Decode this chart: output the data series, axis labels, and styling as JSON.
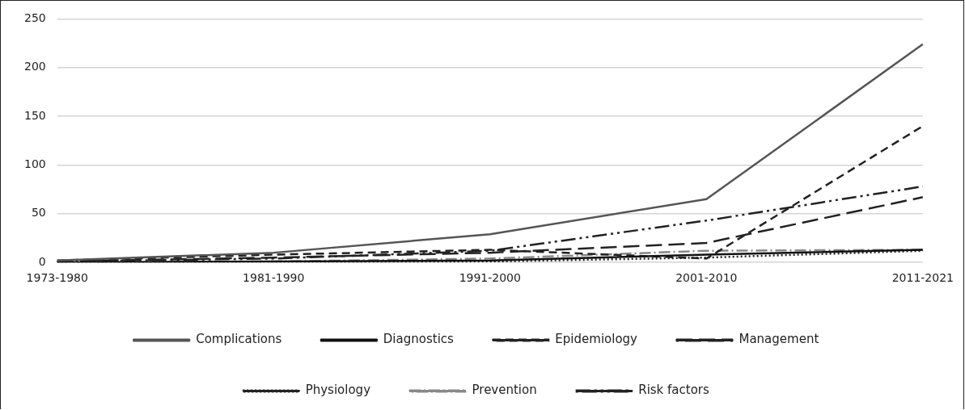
{
  "chart_data": {
    "type": "line",
    "categories": [
      "1973-1980",
      "1981-1990",
      "1991-2000",
      "2001-2010",
      "2011-2021"
    ],
    "series": [
      {
        "name": "Complications",
        "color": "#555555",
        "line_style": "solid",
        "values": [
          2,
          10,
          29,
          65,
          224
        ]
      },
      {
        "name": "Diagnostics",
        "color": "#111111",
        "line_style": "solid",
        "values": [
          0,
          1,
          2,
          8,
          13
        ]
      },
      {
        "name": "Epidemiology",
        "color": "#222222",
        "line_style": "dashed",
        "values": [
          2,
          8,
          13,
          4,
          140
        ]
      },
      {
        "name": "Management",
        "color": "#222222",
        "line_style": "dashed",
        "values": [
          1,
          5,
          10,
          20,
          67
        ]
      },
      {
        "name": "Physiology",
        "color": "#222222",
        "line_style": "dotted",
        "values": [
          0,
          0,
          1,
          5,
          12
        ]
      },
      {
        "name": "Prevention",
        "color": "#888888",
        "line_style": "dashed",
        "values": [
          0,
          1,
          4,
          12,
          13
        ]
      },
      {
        "name": "Risk factors",
        "color": "#222222",
        "line_style": "dashed",
        "values": [
          1,
          4,
          12,
          43,
          78
        ]
      }
    ],
    "ylim": [
      0,
      250
    ],
    "yticks": [
      0,
      50,
      100,
      150,
      200,
      250
    ],
    "grid": "y",
    "legend": "bottom",
    "marker": "none"
  }
}
